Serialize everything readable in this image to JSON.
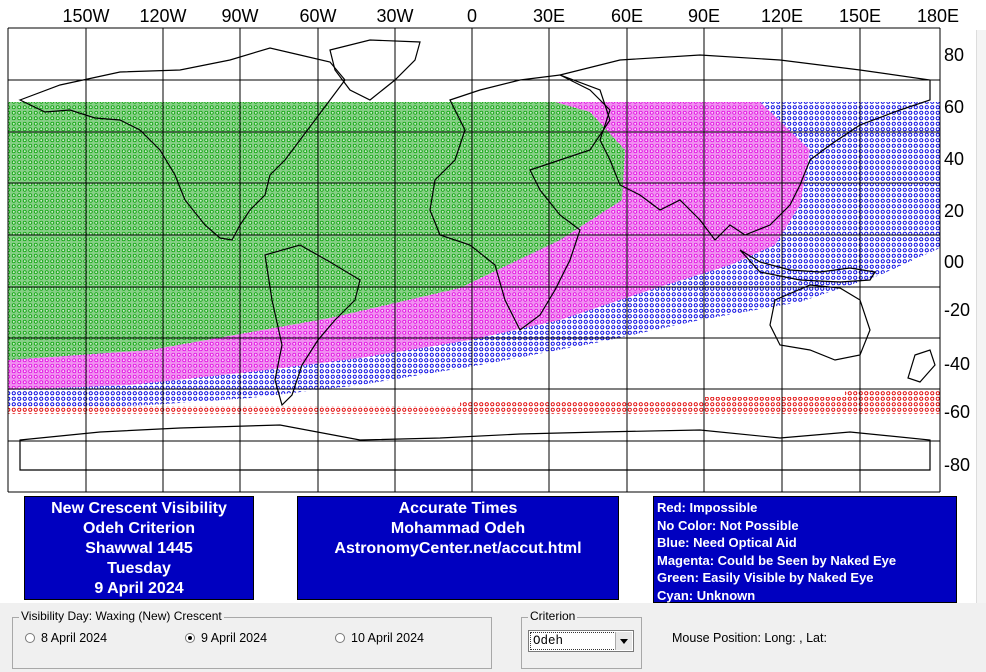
{
  "map": {
    "lon_labels": [
      "150W",
      "120W",
      "90W",
      "60W",
      "30W",
      "0",
      "30E",
      "60E",
      "90E",
      "120E",
      "150E",
      "180E"
    ],
    "lat_labels": [
      "80",
      "60",
      "40",
      "20",
      "00",
      "-20",
      "-40",
      "-60",
      "-80"
    ],
    "visibility_bands": [
      {
        "name": "Green: Easily Visible by Naked Eye",
        "color": "#00a000"
      },
      {
        "name": "Magenta: Could be Seen by Naked Eye",
        "color": "#e000e0"
      },
      {
        "name": "Blue: Need Optical Aid",
        "color": "#0000e0"
      },
      {
        "name": "Red: Impossible",
        "color": "#e00000"
      }
    ]
  },
  "info_left": {
    "lines": [
      "New Crescent Visibility",
      "Odeh Criterion",
      "Shawwal 1445",
      "Tuesday",
      "9 April 2024"
    ]
  },
  "info_middle": {
    "lines": [
      "Accurate Times",
      "Mohammad Odeh",
      "AstronomyCenter.net/accut.html"
    ]
  },
  "info_legend": {
    "lines": [
      "Red: Impossible",
      "No Color: Not Possible",
      "Blue: Need Optical Aid",
      "Magenta: Could be Seen by Naked Eye",
      "Green: Easily Visible by Naked Eye",
      "Cyan: Unknown"
    ]
  },
  "visibility_day": {
    "group_label": "Visibility Day: Waxing (New) Crescent",
    "options": [
      "8 April 2024",
      "9 April 2024",
      "10 April 2024"
    ],
    "selected": "9 April 2024"
  },
  "criterion": {
    "group_label": "Criterion",
    "selected": "Odeh"
  },
  "mouse_position": {
    "text": "Mouse Position: Long: , Lat:"
  },
  "colors": {
    "info_box_bg": "#0000c0",
    "green": "#00a000",
    "magenta": "#e000e0",
    "blue": "#0000e0",
    "red": "#e00000"
  }
}
